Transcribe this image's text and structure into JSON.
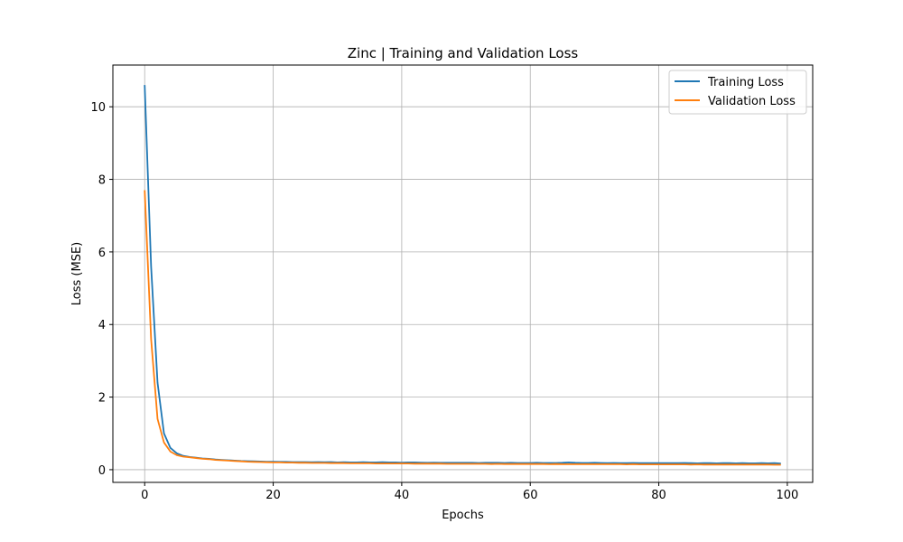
{
  "chart_data": {
    "type": "line",
    "title": "Zinc | Training and Validation Loss",
    "xlabel": "Epochs",
    "ylabel": "Loss (MSE)",
    "xlim": [
      -4.95,
      103.95
    ],
    "ylim": [
      -0.35,
      11.15
    ],
    "xticks": [
      0,
      20,
      40,
      60,
      80,
      100
    ],
    "yticks": [
      0,
      2,
      4,
      6,
      8,
      10
    ],
    "grid": true,
    "legend": "top-right",
    "series": [
      {
        "name": "Training Loss",
        "color": "#1f77b4",
        "x": [
          0,
          1,
          2,
          3,
          4,
          5,
          6,
          7,
          8,
          9,
          10,
          11,
          12,
          13,
          14,
          15,
          16,
          17,
          18,
          19,
          20,
          21,
          22,
          23,
          24,
          25,
          26,
          27,
          28,
          29,
          30,
          31,
          32,
          33,
          34,
          35,
          36,
          37,
          38,
          39,
          40,
          41,
          42,
          43,
          44,
          45,
          46,
          47,
          48,
          49,
          50,
          51,
          52,
          53,
          54,
          55,
          56,
          57,
          58,
          59,
          60,
          61,
          62,
          63,
          64,
          65,
          66,
          67,
          68,
          69,
          70,
          71,
          72,
          73,
          74,
          75,
          76,
          77,
          78,
          79,
          80,
          81,
          82,
          83,
          84,
          85,
          86,
          87,
          88,
          89,
          90,
          91,
          92,
          93,
          94,
          95,
          96,
          97,
          98,
          99
        ],
        "values": [
          10.6,
          5.6,
          2.4,
          1.0,
          0.6,
          0.45,
          0.38,
          0.35,
          0.33,
          0.31,
          0.3,
          0.28,
          0.27,
          0.26,
          0.25,
          0.24,
          0.235,
          0.23,
          0.225,
          0.22,
          0.22,
          0.215,
          0.215,
          0.21,
          0.21,
          0.21,
          0.205,
          0.21,
          0.205,
          0.21,
          0.2,
          0.205,
          0.2,
          0.2,
          0.205,
          0.2,
          0.2,
          0.205,
          0.2,
          0.2,
          0.195,
          0.2,
          0.2,
          0.195,
          0.19,
          0.195,
          0.19,
          0.19,
          0.19,
          0.19,
          0.19,
          0.19,
          0.185,
          0.19,
          0.19,
          0.19,
          0.185,
          0.19,
          0.185,
          0.185,
          0.185,
          0.19,
          0.185,
          0.185,
          0.185,
          0.19,
          0.2,
          0.19,
          0.185,
          0.185,
          0.19,
          0.185,
          0.18,
          0.185,
          0.18,
          0.18,
          0.185,
          0.18,
          0.18,
          0.18,
          0.18,
          0.18,
          0.18,
          0.18,
          0.185,
          0.18,
          0.175,
          0.18,
          0.18,
          0.175,
          0.18,
          0.18,
          0.175,
          0.18,
          0.175,
          0.175,
          0.18,
          0.175,
          0.18,
          0.17
        ]
      },
      {
        "name": "Validation Loss",
        "color": "#ff7f0e",
        "x": [
          0,
          1,
          2,
          3,
          4,
          5,
          6,
          7,
          8,
          9,
          10,
          11,
          12,
          13,
          14,
          15,
          16,
          17,
          18,
          19,
          20,
          21,
          22,
          23,
          24,
          25,
          26,
          27,
          28,
          29,
          30,
          31,
          32,
          33,
          34,
          35,
          36,
          37,
          38,
          39,
          40,
          41,
          42,
          43,
          44,
          45,
          46,
          47,
          48,
          49,
          50,
          51,
          52,
          53,
          54,
          55,
          56,
          57,
          58,
          59,
          60,
          61,
          62,
          63,
          64,
          65,
          66,
          67,
          68,
          69,
          70,
          71,
          72,
          73,
          74,
          75,
          76,
          77,
          78,
          79,
          80,
          81,
          82,
          83,
          84,
          85,
          86,
          87,
          88,
          89,
          90,
          91,
          92,
          93,
          94,
          95,
          96,
          97,
          98,
          99
        ],
        "values": [
          7.7,
          3.6,
          1.4,
          0.75,
          0.5,
          0.4,
          0.36,
          0.34,
          0.32,
          0.3,
          0.29,
          0.27,
          0.26,
          0.25,
          0.24,
          0.23,
          0.22,
          0.215,
          0.21,
          0.205,
          0.2,
          0.2,
          0.195,
          0.195,
          0.19,
          0.19,
          0.185,
          0.185,
          0.185,
          0.18,
          0.18,
          0.18,
          0.175,
          0.175,
          0.175,
          0.175,
          0.17,
          0.17,
          0.17,
          0.17,
          0.17,
          0.17,
          0.165,
          0.165,
          0.165,
          0.165,
          0.165,
          0.16,
          0.16,
          0.16,
          0.16,
          0.16,
          0.16,
          0.16,
          0.155,
          0.16,
          0.155,
          0.155,
          0.155,
          0.155,
          0.155,
          0.155,
          0.155,
          0.15,
          0.155,
          0.15,
          0.15,
          0.15,
          0.15,
          0.15,
          0.15,
          0.15,
          0.15,
          0.15,
          0.15,
          0.145,
          0.15,
          0.145,
          0.145,
          0.145,
          0.145,
          0.145,
          0.145,
          0.145,
          0.145,
          0.14,
          0.145,
          0.14,
          0.14,
          0.14,
          0.14,
          0.14,
          0.14,
          0.14,
          0.14,
          0.14,
          0.14,
          0.14,
          0.135,
          0.135
        ]
      }
    ]
  }
}
